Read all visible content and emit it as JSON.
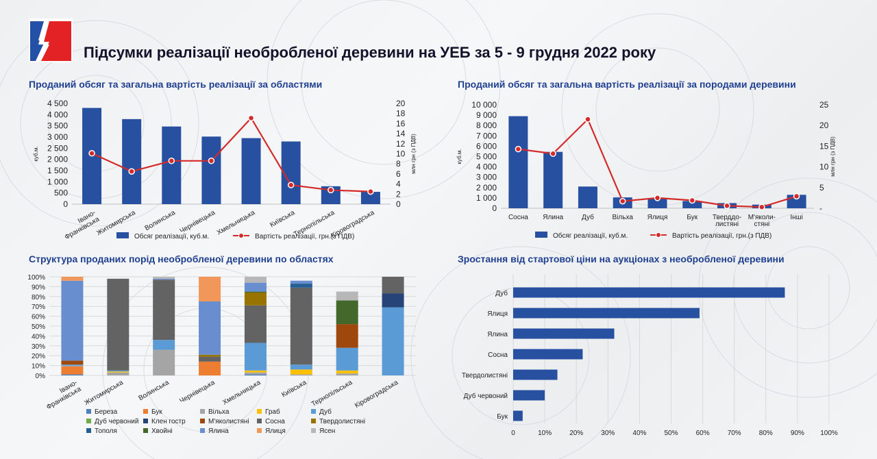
{
  "title": "Підсумки реалізації необробленої деревини на УЕБ за 5 - 9 грудня 2022 року",
  "colors": {
    "bar": "#2750a0",
    "line": "#d42a2a",
    "title_blue": "#1f3f8f",
    "logo_blue": "#2450a8",
    "logo_red": "#e32226"
  },
  "chart_data": [
    {
      "id": "regions",
      "type": "bar+line",
      "title": "Проданий обсяг та загальна вартість реалізації за областями",
      "categories": [
        "Івано-Франківська",
        "Житомирська",
        "Волинська",
        "Чернівецька",
        "Хмельницька",
        "Київська",
        "Тернопільська",
        "Кіровоградська"
      ],
      "category_lines": [
        [
          "Івано-",
          "Франківська"
        ],
        [
          "Житомирська"
        ],
        [
          "Волинська"
        ],
        [
          "Чернівецька"
        ],
        [
          "Хмельницька"
        ],
        [
          "Київська"
        ],
        [
          "Тернопільська"
        ],
        [
          "Кіровоградська"
        ]
      ],
      "series": [
        {
          "name": "Обсяг реалізації, куб.м.",
          "type": "bar",
          "axis": "left",
          "values": [
            4300,
            3800,
            3470,
            3020,
            2950,
            2800,
            800,
            550
          ]
        },
        {
          "name": "Вартість реалізації, грн.(з ПДВ)",
          "type": "line",
          "axis": "right",
          "values": [
            10.1,
            6.5,
            8.6,
            8.6,
            17.1,
            3.8,
            2.8,
            2.5
          ]
        }
      ],
      "ylabel": "куб.м.",
      "y2label": "млн грн (з ПДВ)",
      "ylim": [
        0,
        4500
      ],
      "yticks": [
        "0",
        "500",
        "1 000",
        "1 500",
        "2 000",
        "2 500",
        "3 000",
        "3 500",
        "4 000",
        "4 500"
      ],
      "y2lim": [
        0,
        20
      ],
      "y2ticks": [
        "0",
        "2",
        "4",
        "6",
        "8",
        "10",
        "12",
        "14",
        "16",
        "18",
        "20"
      ],
      "legend_position": "bottom"
    },
    {
      "id": "species",
      "type": "bar+line",
      "title": "Проданий обсяг та загальна вартість реалізації за породами деревини",
      "categories": [
        "Сосна",
        "Ялина",
        "Дуб",
        "Вільха",
        "Ялиця",
        "Бук",
        "Твердолистяні",
        "М'яколистяні",
        "Інші"
      ],
      "category_lines": [
        [
          "Сосна"
        ],
        [
          "Ялина"
        ],
        [
          "Дуб"
        ],
        [
          "Вільха"
        ],
        [
          "Ялиця"
        ],
        [
          "Бук"
        ],
        [
          "Тверддо-",
          "листяні"
        ],
        [
          "М'яколи-",
          "стяні"
        ],
        [
          "Інші"
        ]
      ],
      "series": [
        {
          "name": "Обсяг реалізації, куб.м.",
          "type": "bar",
          "axis": "left",
          "values": [
            8900,
            5450,
            2100,
            1050,
            950,
            700,
            500,
            350,
            1300
          ]
        },
        {
          "name": "Вартість реалізації, грн.(з ПДВ)",
          "type": "line",
          "axis": "right",
          "values": [
            14.3,
            13.2,
            21.5,
            1.7,
            2.5,
            1.9,
            0.6,
            0.3,
            2.9
          ]
        }
      ],
      "ylabel": "куб.м.",
      "y2label": "млн грн (з ПДВ)",
      "ylim": [
        0,
        10000
      ],
      "yticks": [
        "0",
        "1 000",
        "2 000",
        "3 000",
        "4 000",
        "5 000",
        "6 000",
        "7 000",
        "8 000",
        "9 000",
        "10 000"
      ],
      "y2lim": [
        0,
        25
      ],
      "y2ticks": [
        "-",
        "5",
        "10",
        "15",
        "20",
        "25"
      ],
      "legend_position": "bottom"
    },
    {
      "id": "structure",
      "type": "stacked-bar-100",
      "title": "Структура проданих порід необробленої деревини по областях",
      "categories": [
        "Івано-Франківська",
        "Житомирська",
        "Волинська",
        "Чернівецька",
        "Хмельницька",
        "Київська",
        "Тернопільська",
        "Кіровоградська"
      ],
      "category_lines": [
        [
          "Івано-",
          "Франківська"
        ],
        [
          "Житомирська"
        ],
        [
          "Волинська"
        ],
        [
          "Чернівецька"
        ],
        [
          "Хмельницька"
        ],
        [
          "Київська"
        ],
        [
          "Тернопільська"
        ],
        [
          "Кіровоградська"
        ]
      ],
      "series": [
        {
          "name": "Береза",
          "color": "#4f81bd",
          "values": [
            1,
            0,
            0,
            0,
            1,
            0,
            0,
            0
          ]
        },
        {
          "name": "Бук",
          "color": "#ed7d31",
          "values": [
            8,
            0,
            0,
            14,
            0,
            0,
            0,
            0
          ]
        },
        {
          "name": "Вільха",
          "color": "#a5a5a5",
          "values": [
            1,
            3,
            26,
            0,
            2,
            1,
            2,
            0
          ]
        },
        {
          "name": "Граб",
          "color": "#ffc000",
          "values": [
            0,
            1,
            0,
            0,
            2,
            5,
            3,
            0
          ]
        },
        {
          "name": "Дуб",
          "color": "#5b9bd5",
          "values": [
            1,
            1,
            10,
            0,
            28,
            5,
            23,
            69
          ]
        },
        {
          "name": "Дуб червоний",
          "color": "#70ad47",
          "values": [
            0,
            0,
            0,
            0,
            0,
            0,
            0,
            0
          ]
        },
        {
          "name": "Клен гостр",
          "color": "#264478",
          "values": [
            0,
            0,
            0,
            0,
            0,
            0,
            0,
            14
          ]
        },
        {
          "name": "М'яколистяні",
          "color": "#9e480e",
          "values": [
            4,
            0,
            0,
            0,
            0,
            0,
            24,
            0
          ]
        },
        {
          "name": "Сосна",
          "color": "#636363",
          "values": [
            0,
            93,
            61,
            5,
            38,
            78,
            0,
            17
          ]
        },
        {
          "name": "Твердолистяні",
          "color": "#997300",
          "values": [
            0,
            0,
            0,
            2,
            13,
            0,
            0,
            0
          ]
        },
        {
          "name": "Тополя",
          "color": "#255e91",
          "values": [
            0,
            0,
            0,
            0,
            0,
            4,
            0,
            0
          ]
        },
        {
          "name": "Хвойні",
          "color": "#43682b",
          "values": [
            0,
            0,
            0,
            0,
            1,
            0,
            24,
            0
          ]
        },
        {
          "name": "Ялина",
          "color": "#698ed0",
          "values": [
            81,
            0,
            1,
            54,
            9,
            3,
            0,
            0
          ]
        },
        {
          "name": "Ялиця",
          "color": "#f1975a",
          "values": [
            4,
            0,
            0,
            25,
            0,
            0,
            0,
            0
          ]
        },
        {
          "name": "Ясен",
          "color": "#b7b7b7",
          "values": [
            0,
            0,
            2,
            0,
            6,
            0,
            9,
            0
          ]
        }
      ],
      "ylim": [
        0,
        100
      ],
      "yticks": [
        "0%",
        "10%",
        "20%",
        "30%",
        "40%",
        "50%",
        "60%",
        "70%",
        "80%",
        "90%",
        "100%"
      ],
      "legend_position": "bottom"
    },
    {
      "id": "growth",
      "type": "hbar",
      "title": "Зростання від стартової ціни на аукціонах з необробленої деревини",
      "categories": [
        "Дуб",
        "Ялиця",
        "Ялина",
        "Сосна",
        "Твердолистяні",
        "Дуб червоний",
        "Бук"
      ],
      "values": [
        86,
        59,
        32,
        22,
        14,
        10,
        3
      ],
      "xlim": [
        0,
        100
      ],
      "xticks": [
        "0",
        "10%",
        "20%",
        "30%",
        "40%",
        "50%",
        "60%",
        "70%",
        "80%",
        "90%",
        "100%"
      ]
    }
  ]
}
